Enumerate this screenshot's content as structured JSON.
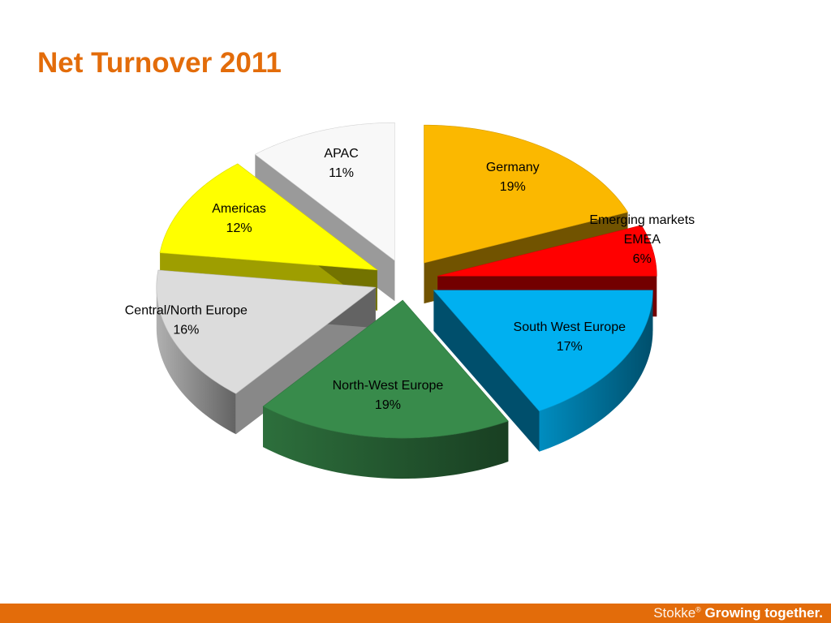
{
  "slide": {
    "title": "Net Turnover 2011",
    "accent_color": "#e36c0a"
  },
  "footer": {
    "brand": "Stokke",
    "registered_mark": "®",
    "tagline": "Growing together.",
    "bar_color": "#e36c0a"
  },
  "chart_data": {
    "type": "pie",
    "style": "3d-exploded",
    "title": "",
    "slices": [
      {
        "label": "Germany",
        "value": 19,
        "value_label": "19%",
        "color": "#fbb800"
      },
      {
        "label": "Emerging markets EMEA",
        "label_lines": [
          "Emerging markets",
          "EMEA"
        ],
        "value": 6,
        "value_label": "6%",
        "color": "#ff0000"
      },
      {
        "label": "South West Europe",
        "value": 17,
        "value_label": "17%",
        "color": "#00b0f0"
      },
      {
        "label": "North-West Europe",
        "value": 19,
        "value_label": "19%",
        "color": "#388b4b"
      },
      {
        "label": "Central/North Europe",
        "value": 16,
        "value_label": "16%",
        "color": "#dcdcdc"
      },
      {
        "label": "Americas",
        "value": 12,
        "value_label": "12%",
        "color": "#ffff00"
      },
      {
        "label": "APAC",
        "value": 11,
        "value_label": "11%",
        "color": "#f8f8f8"
      }
    ]
  }
}
